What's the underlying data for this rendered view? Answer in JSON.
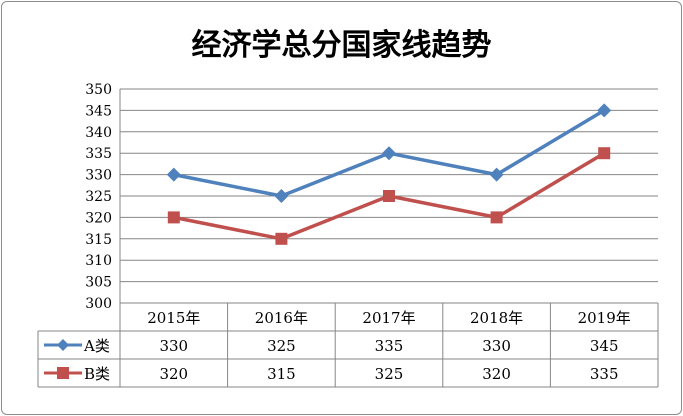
{
  "chart_data": {
    "type": "line",
    "title": "经济学总分国家线趋势",
    "categories": [
      "2015年",
      "2016年",
      "2017年",
      "2018年",
      "2019年"
    ],
    "series": [
      {
        "name": "A类",
        "values": [
          330,
          325,
          335,
          330,
          345
        ],
        "color": "#4f81bd",
        "marker": "diamond"
      },
      {
        "name": "B类",
        "values": [
          320,
          315,
          325,
          320,
          335
        ],
        "color": "#c0504d",
        "marker": "square"
      }
    ],
    "ylim": [
      300,
      350
    ],
    "yticks": [
      300,
      305,
      310,
      315,
      320,
      325,
      330,
      335,
      340,
      345,
      350
    ],
    "grid": true,
    "legend": "data-table",
    "data_table": true
  }
}
